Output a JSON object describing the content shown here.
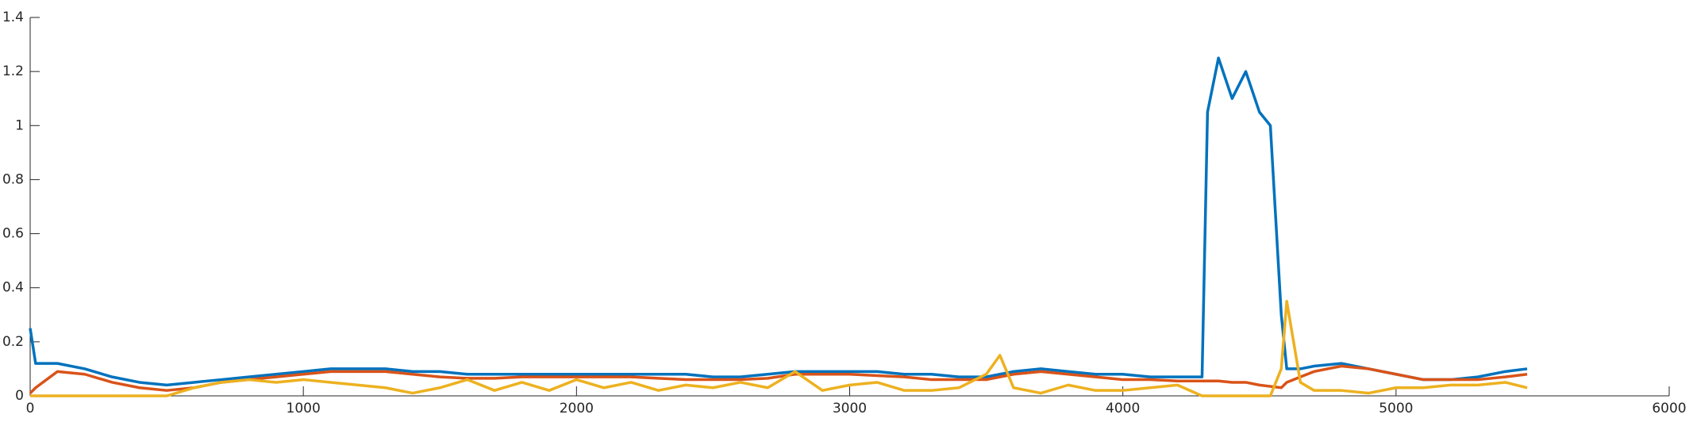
{
  "chart_data": {
    "type": "line",
    "x": [
      0,
      20,
      100,
      200,
      300,
      400,
      500,
      600,
      700,
      800,
      900,
      1000,
      1100,
      1200,
      1300,
      1400,
      1500,
      1600,
      1700,
      1800,
      1900,
      2000,
      2100,
      2200,
      2300,
      2400,
      2500,
      2600,
      2700,
      2800,
      2900,
      3000,
      3100,
      3200,
      3300,
      3400,
      3500,
      3550,
      3600,
      3700,
      3800,
      3900,
      4000,
      4100,
      4200,
      4290,
      4310,
      4350,
      4400,
      4450,
      4500,
      4540,
      4580,
      4600,
      4650,
      4700,
      4800,
      4900,
      5000,
      5100,
      5200,
      5300,
      5400,
      5480
    ],
    "series": [
      {
        "color": "#0072bd",
        "values": [
          0.25,
          0.12,
          0.12,
          0.1,
          0.07,
          0.05,
          0.04,
          0.05,
          0.06,
          0.07,
          0.08,
          0.09,
          0.1,
          0.1,
          0.1,
          0.09,
          0.09,
          0.08,
          0.08,
          0.08,
          0.08,
          0.08,
          0.08,
          0.08,
          0.08,
          0.08,
          0.07,
          0.07,
          0.08,
          0.09,
          0.09,
          0.09,
          0.09,
          0.08,
          0.08,
          0.07,
          0.07,
          0.08,
          0.09,
          0.1,
          0.09,
          0.08,
          0.08,
          0.07,
          0.07,
          0.07,
          1.05,
          1.25,
          1.1,
          1.2,
          1.05,
          1.0,
          0.3,
          0.1,
          0.1,
          0.11,
          0.12,
          0.1,
          0.08,
          0.06,
          0.06,
          0.07,
          0.09,
          0.1
        ]
      },
      {
        "color": "#d95319",
        "values": [
          0.01,
          0.03,
          0.09,
          0.08,
          0.05,
          0.03,
          0.02,
          0.03,
          0.05,
          0.06,
          0.07,
          0.08,
          0.09,
          0.09,
          0.09,
          0.08,
          0.07,
          0.065,
          0.065,
          0.07,
          0.07,
          0.07,
          0.07,
          0.07,
          0.065,
          0.06,
          0.06,
          0.06,
          0.065,
          0.08,
          0.08,
          0.08,
          0.075,
          0.07,
          0.06,
          0.06,
          0.06,
          0.07,
          0.08,
          0.09,
          0.08,
          0.07,
          0.06,
          0.06,
          0.055,
          0.055,
          0.055,
          0.055,
          0.05,
          0.05,
          0.04,
          0.035,
          0.03,
          0.05,
          0.07,
          0.09,
          0.11,
          0.1,
          0.08,
          0.06,
          0.06,
          0.06,
          0.07,
          0.08
        ]
      },
      {
        "color": "#edb120",
        "values": [
          0,
          0,
          0,
          0,
          0,
          0,
          0,
          0.03,
          0.05,
          0.06,
          0.05,
          0.06,
          0.05,
          0.04,
          0.03,
          0.01,
          0.03,
          0.06,
          0.02,
          0.05,
          0.02,
          0.06,
          0.03,
          0.05,
          0.02,
          0.04,
          0.03,
          0.05,
          0.03,
          0.09,
          0.02,
          0.04,
          0.05,
          0.02,
          0.02,
          0.03,
          0.08,
          0.15,
          0.03,
          0.01,
          0.04,
          0.02,
          0.02,
          0.03,
          0.04,
          0,
          0,
          0,
          0,
          0,
          0,
          0,
          0.1,
          0.35,
          0.05,
          0.02,
          0.02,
          0.01,
          0.03,
          0.03,
          0.04,
          0.04,
          0.05,
          0.03
        ]
      }
    ],
    "xlim": [
      0,
      6000
    ],
    "xticks": [
      0,
      1000,
      2000,
      3000,
      4000,
      5000,
      6000
    ],
    "ylim": [
      0,
      1.4
    ],
    "yticks": [
      0,
      0.2,
      0.4,
      0.6,
      0.8,
      1,
      1.2,
      1.4
    ]
  }
}
